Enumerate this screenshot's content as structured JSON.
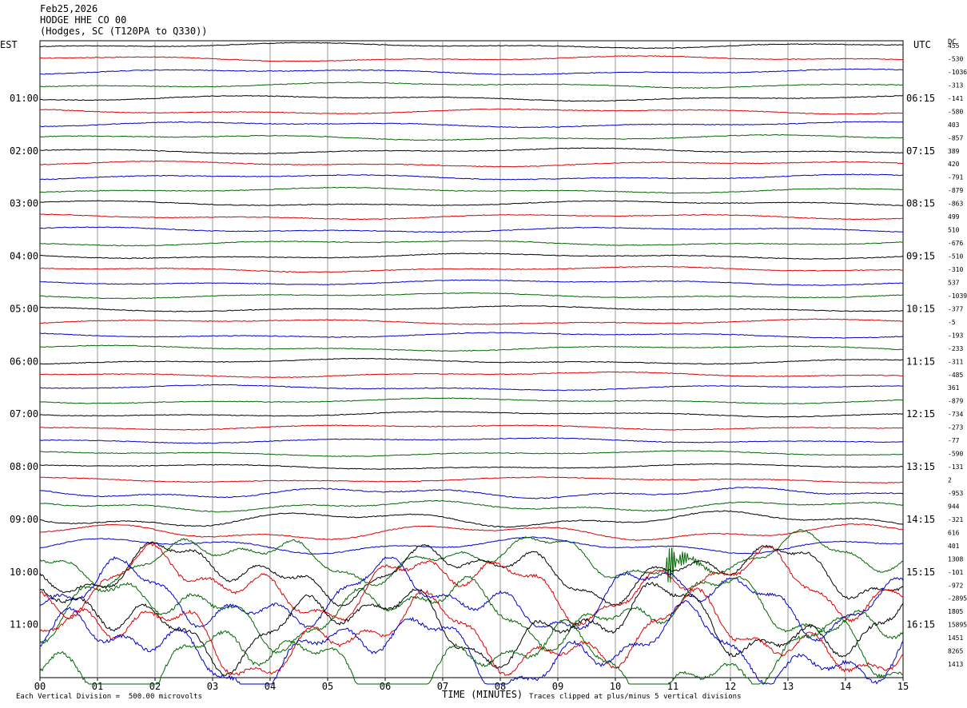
{
  "header": {
    "date": "Feb25,2026",
    "station": "HODGE HHE CO 00",
    "location": "(Hodges, SC (T120PA to Q330))"
  },
  "left_axis_title": "EST",
  "right_axis_title": "UTC",
  "dc_title": "DC",
  "footer": {
    "xlabel": "TIME (MINUTES)",
    "scale_note": "Each Vertical Division =  500.00 microvolts",
    "clip_note": "Traces clipped at plus/minus 5 vertical divisions"
  },
  "chart_data": {
    "type": "line",
    "title": "HODGE HHE CO 00",
    "xlabel": "TIME (MINUTES)",
    "ylabel": "",
    "xlim": [
      0,
      15
    ],
    "x_ticks": [
      "00",
      "01",
      "02",
      "03",
      "04",
      "05",
      "06",
      "07",
      "08",
      "09",
      "10",
      "11",
      "12",
      "13",
      "14",
      "15"
    ],
    "trace_count": 48,
    "trace_colors": [
      "#000000",
      "#dd0000",
      "#0000cc",
      "#006600"
    ],
    "trace_interval_minutes": 15,
    "left_hour_labels": [
      "01:00",
      "02:00",
      "03:00",
      "04:00",
      "05:00",
      "06:00",
      "07:00",
      "08:00",
      "09:00",
      "10:00",
      "11:00"
    ],
    "right_hour_labels": [
      "06:15",
      "07:15",
      "08:15",
      "09:15",
      "10:15",
      "11:15",
      "12:15",
      "13:15",
      "14:15",
      "15:15",
      "16:15"
    ],
    "dc_offsets": [
      "455",
      "-530",
      "-1036",
      "-313",
      "-141",
      "-580",
      "403",
      "-857",
      "389",
      "420",
      "-791",
      "-879",
      "-863",
      "499",
      "510",
      "-676",
      "-510",
      "-310",
      "537",
      "-1039",
      "-377",
      "-5",
      "-193",
      "-233",
      "-311",
      "-485",
      "361",
      "-879",
      "-734",
      "-273",
      "-77",
      "-590",
      "-131",
      "2",
      "-953",
      "944",
      "-321",
      "616",
      "401",
      "1308",
      "-101",
      "-972",
      "-2895",
      "1805",
      "15895",
      "1451",
      "8265",
      "1413"
    ],
    "events": [
      {
        "trace": 39,
        "minute": 10.9,
        "description": "local earthquake burst"
      }
    ],
    "noise_levels": [
      1,
      1,
      1,
      1,
      1,
      1,
      1,
      1,
      1,
      1,
      1,
      1,
      1,
      1,
      1,
      1,
      1,
      1,
      1,
      1,
      1,
      1,
      1,
      1,
      1,
      1,
      1,
      1,
      1,
      1,
      1,
      1,
      1,
      1,
      2,
      2,
      3,
      3,
      3,
      4,
      5,
      6,
      6,
      6,
      7,
      7,
      7,
      7
    ]
  }
}
